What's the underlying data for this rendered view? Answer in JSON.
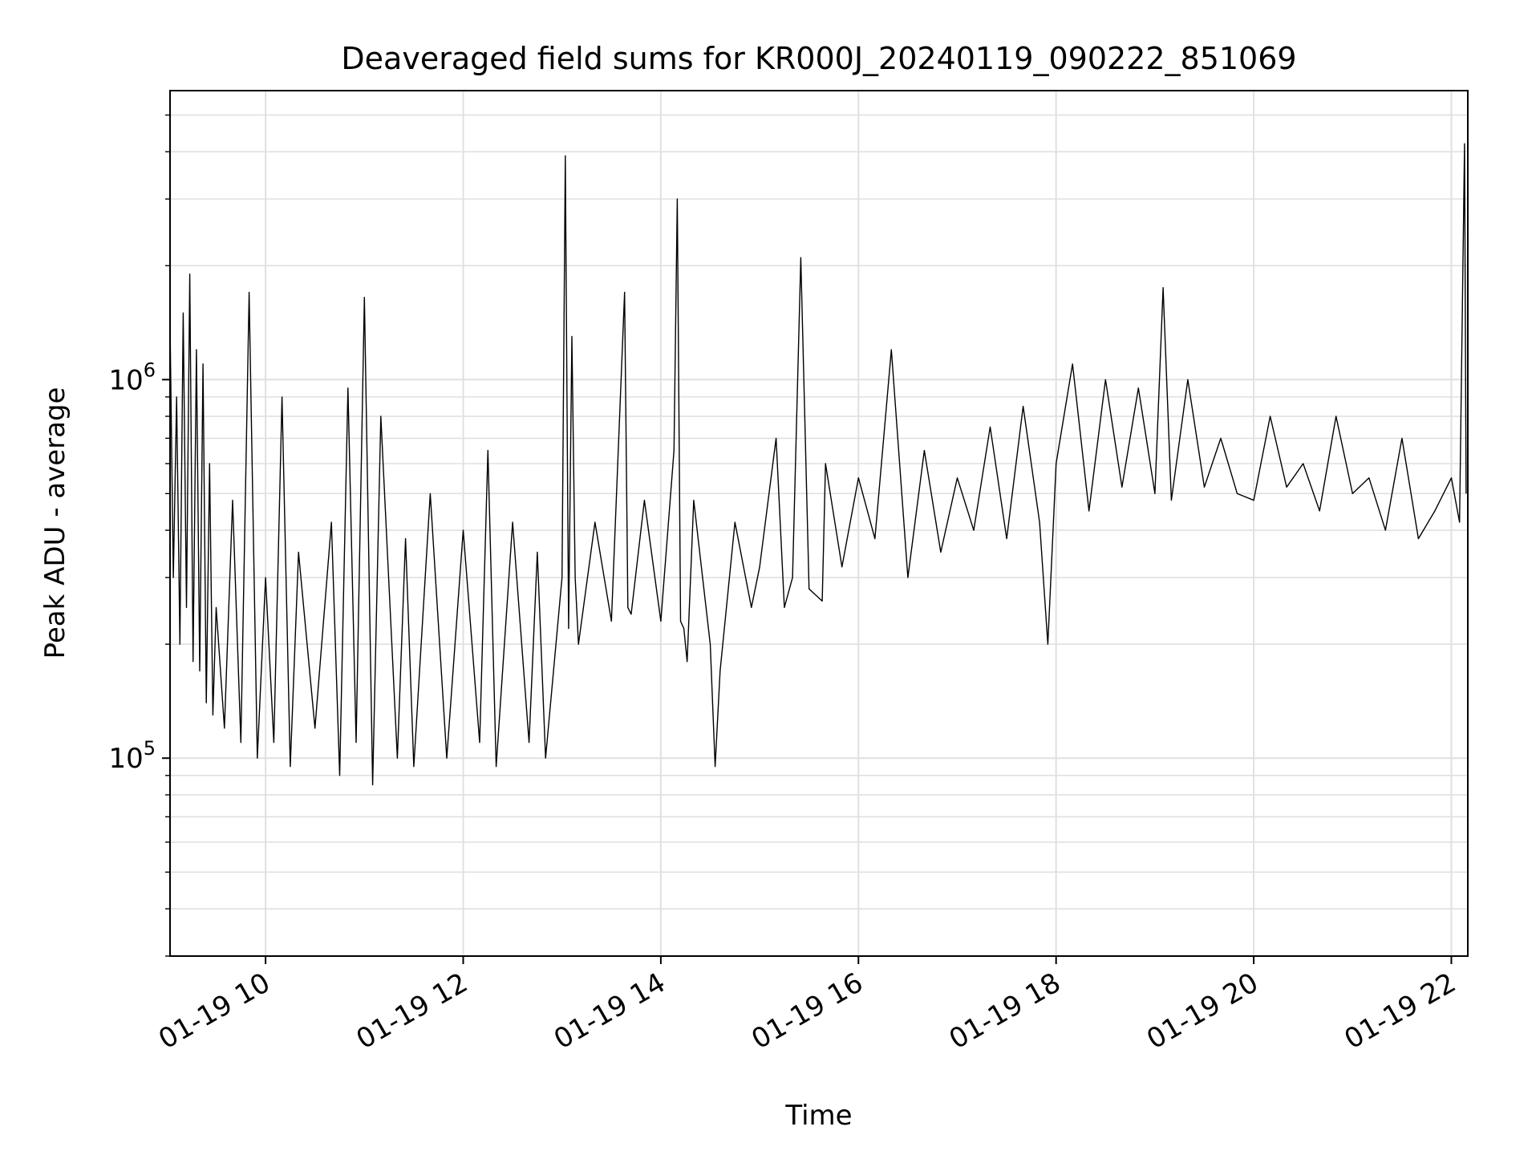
{
  "chart_data": {
    "type": "line",
    "title": "Deaveraged field sums for KR000J_20240119_090222_851069",
    "xlabel": "Time",
    "ylabel": "Peak ADU - average",
    "xlim": [
      "2024-01-19 09:02",
      "2024-01-19 22:10"
    ],
    "ylim": [
      30000,
      5800000
    ],
    "yscale": "log",
    "xticks": [
      "01-19 10",
      "01-19 12",
      "01-19 14",
      "01-19 16",
      "01-19 18",
      "01-19 20",
      "01-19 22"
    ],
    "yticks": [
      {
        "base": "10",
        "exp": "5",
        "value": 100000
      },
      {
        "base": "10",
        "exp": "6",
        "value": 1000000
      }
    ],
    "grid": true,
    "line_color": "#000000",
    "series": [
      {
        "x": [
          "2024-01-19 09:02",
          "2024-01-19 09:04",
          "2024-01-19 09:06",
          "2024-01-19 09:08",
          "2024-01-19 09:10",
          "2024-01-19 09:12",
          "2024-01-19 09:14",
          "2024-01-19 09:16",
          "2024-01-19 09:18",
          "2024-01-19 09:20",
          "2024-01-19 09:22",
          "2024-01-19 09:24",
          "2024-01-19 09:26",
          "2024-01-19 09:28",
          "2024-01-19 09:30",
          "2024-01-19 09:35",
          "2024-01-19 09:40",
          "2024-01-19 09:45",
          "2024-01-19 09:50",
          "2024-01-19 09:55",
          "2024-01-19 10:00",
          "2024-01-19 10:05",
          "2024-01-19 10:10",
          "2024-01-19 10:15",
          "2024-01-19 10:20",
          "2024-01-19 10:30",
          "2024-01-19 10:40",
          "2024-01-19 10:45",
          "2024-01-19 10:50",
          "2024-01-19 10:55",
          "2024-01-19 11:00",
          "2024-01-19 11:05",
          "2024-01-19 11:10",
          "2024-01-19 11:20",
          "2024-01-19 11:25",
          "2024-01-19 11:30",
          "2024-01-19 11:40",
          "2024-01-19 11:50",
          "2024-01-19 12:00",
          "2024-01-19 12:10",
          "2024-01-19 12:15",
          "2024-01-19 12:20",
          "2024-01-19 12:30",
          "2024-01-19 12:40",
          "2024-01-19 12:45",
          "2024-01-19 12:50",
          "2024-01-19 13:00",
          "2024-01-19 13:02",
          "2024-01-19 13:04",
          "2024-01-19 13:06",
          "2024-01-19 13:08",
          "2024-01-19 13:10",
          "2024-01-19 13:20",
          "2024-01-19 13:30",
          "2024-01-19 13:38",
          "2024-01-19 13:40",
          "2024-01-19 13:42",
          "2024-01-19 13:50",
          "2024-01-19 14:00",
          "2024-01-19 14:08",
          "2024-01-19 14:10",
          "2024-01-19 14:12",
          "2024-01-19 14:14",
          "2024-01-19 14:16",
          "2024-01-19 14:20",
          "2024-01-19 14:30",
          "2024-01-19 14:33",
          "2024-01-19 14:36",
          "2024-01-19 14:45",
          "2024-01-19 14:55",
          "2024-01-19 15:00",
          "2024-01-19 15:10",
          "2024-01-19 15:15",
          "2024-01-19 15:20",
          "2024-01-19 15:25",
          "2024-01-19 15:30",
          "2024-01-19 15:38",
          "2024-01-19 15:40",
          "2024-01-19 15:50",
          "2024-01-19 16:00",
          "2024-01-19 16:10",
          "2024-01-19 16:20",
          "2024-01-19 16:30",
          "2024-01-19 16:40",
          "2024-01-19 16:50",
          "2024-01-19 17:00",
          "2024-01-19 17:10",
          "2024-01-19 17:20",
          "2024-01-19 17:30",
          "2024-01-19 17:40",
          "2024-01-19 17:50",
          "2024-01-19 17:55",
          "2024-01-19 18:00",
          "2024-01-19 18:10",
          "2024-01-19 18:20",
          "2024-01-19 18:30",
          "2024-01-19 18:40",
          "2024-01-19 18:50",
          "2024-01-19 19:00",
          "2024-01-19 19:05",
          "2024-01-19 19:10",
          "2024-01-19 19:20",
          "2024-01-19 19:30",
          "2024-01-19 19:40",
          "2024-01-19 19:50",
          "2024-01-19 20:00",
          "2024-01-19 20:10",
          "2024-01-19 20:20",
          "2024-01-19 20:30",
          "2024-01-19 20:40",
          "2024-01-19 20:50",
          "2024-01-19 21:00",
          "2024-01-19 21:10",
          "2024-01-19 21:20",
          "2024-01-19 21:30",
          "2024-01-19 21:40",
          "2024-01-19 21:50",
          "2024-01-19 22:00",
          "2024-01-19 22:05",
          "2024-01-19 22:08",
          "2024-01-19 22:09"
        ],
        "values": [
          1400000,
          300000,
          900000,
          200000,
          1500000,
          250000,
          1900000,
          180000,
          1200000,
          170000,
          1100000,
          140000,
          600000,
          130000,
          250000,
          120000,
          480000,
          110000,
          1700000,
          100000,
          300000,
          110000,
          900000,
          95000,
          350000,
          120000,
          420000,
          90000,
          950000,
          110000,
          1650000,
          85000,
          800000,
          100000,
          380000,
          95000,
          500000,
          100000,
          400000,
          110000,
          650000,
          95000,
          420000,
          110000,
          350000,
          100000,
          300000,
          3900000,
          220000,
          1300000,
          300000,
          200000,
          420000,
          230000,
          1700000,
          250000,
          240000,
          480000,
          230000,
          650000,
          3000000,
          230000,
          220000,
          180000,
          480000,
          200000,
          95000,
          170000,
          420000,
          250000,
          320000,
          700000,
          250000,
          300000,
          2100000,
          280000,
          260000,
          600000,
          320000,
          550000,
          380000,
          1200000,
          300000,
          650000,
          350000,
          550000,
          400000,
          750000,
          380000,
          850000,
          420000,
          200000,
          600000,
          1100000,
          450000,
          1000000,
          520000,
          950000,
          500000,
          1750000,
          480000,
          1000000,
          520000,
          700000,
          500000,
          480000,
          800000,
          520000,
          600000,
          450000,
          800000,
          500000,
          550000,
          400000,
          700000,
          380000,
          450000,
          550000,
          420000,
          4200000,
          500000
        ]
      }
    ]
  }
}
